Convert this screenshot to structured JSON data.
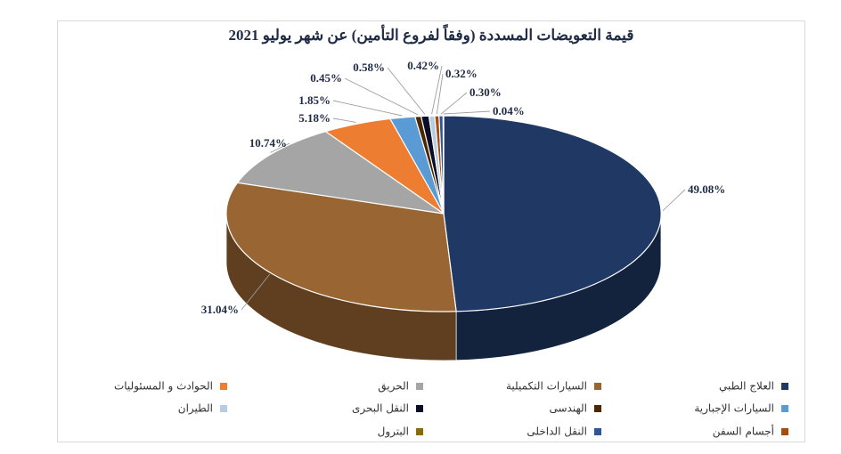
{
  "chart_data": {
    "type": "pie",
    "title": "قيمة التعويضات المسددة (وفقاً لفروع التأمين) عن شهر يوليو 2021",
    "slices": [
      {
        "name": "العلاج الطبي",
        "value": 49.08,
        "label": "49.08%",
        "color": "#1f3864"
      },
      {
        "name": "السيارات التكميلية",
        "value": 31.04,
        "label": "31.04%",
        "color": "#996633"
      },
      {
        "name": "الحريق",
        "value": 10.74,
        "label": "10.74%",
        "color": "#a5a5a5"
      },
      {
        "name": "الحوادث و المسئوليات",
        "value": 5.18,
        "label": "5.18%",
        "color": "#ed7d31"
      },
      {
        "name": "السيارات الإجبارية",
        "value": 1.85,
        "label": "1.85%",
        "color": "#5b9bd5"
      },
      {
        "name": "الهندسى",
        "value": 0.45,
        "label": "0.45%",
        "color": "#4d2600"
      },
      {
        "name": "النقل البحرى",
        "value": 0.58,
        "label": "0.58%",
        "color": "#0b0c25"
      },
      {
        "name": "الطيران",
        "value": 0.42,
        "label": "0.42%",
        "color": "#b4cce4"
      },
      {
        "name": "أجسام السفن",
        "value": 0.32,
        "label": "0.32%",
        "color": "#a84c0c"
      },
      {
        "name": "النقل الداخلى",
        "value": 0.3,
        "label": "0.30%",
        "color": "#2e5597"
      },
      {
        "name": "البترول",
        "value": 0.04,
        "label": "0.04%",
        "color": "#8a6d00"
      }
    ],
    "legend_position": "bottom"
  }
}
